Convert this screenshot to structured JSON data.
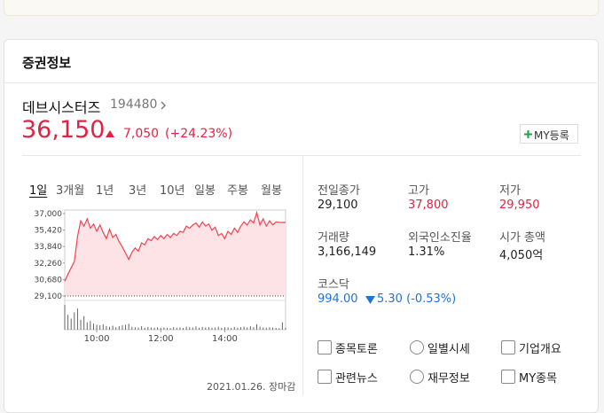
{
  "header": {
    "title": "증권정보"
  },
  "stock": {
    "name": "데브시스터즈",
    "code": "194480",
    "price": "36,150",
    "change": "7,050",
    "change_rate": "(+24.23%)",
    "my_button": "MY등록"
  },
  "tabs": [
    "1일",
    "3개월",
    "1년",
    "3년",
    "10년",
    "일봉",
    "주봉",
    "월봉"
  ],
  "chart": {
    "type": "line",
    "color": "#f04452",
    "ylim": [
      29100,
      37000
    ],
    "yticks": [
      {
        "value": 37000,
        "label": "37,000"
      },
      {
        "value": 35420,
        "label": "35,420"
      },
      {
        "value": 33840,
        "label": "33,840"
      },
      {
        "value": 32260,
        "label": "32,260"
      },
      {
        "value": 30680,
        "label": "30,680"
      },
      {
        "value": 29100,
        "label": "29,100"
      }
    ],
    "xlim": [
      9,
      15.9
    ],
    "xticks": [
      {
        "value": 10,
        "label": "10:00"
      },
      {
        "value": 12,
        "label": "12:00"
      },
      {
        "value": 14,
        "label": "14:00"
      }
    ],
    "x": [
      9.0,
      9.1,
      9.2,
      9.3,
      9.4,
      9.5,
      9.6,
      9.7,
      9.8,
      9.9,
      10.0,
      10.1,
      10.2,
      10.3,
      10.4,
      10.5,
      10.6,
      10.7,
      10.8,
      10.9,
      11.0,
      11.1,
      11.2,
      11.3,
      11.4,
      11.5,
      11.6,
      11.7,
      11.8,
      11.9,
      12.0,
      12.1,
      12.2,
      12.3,
      12.4,
      12.5,
      12.6,
      12.7,
      12.8,
      12.9,
      13.0,
      13.1,
      13.2,
      13.3,
      13.4,
      13.5,
      13.6,
      13.7,
      13.8,
      13.9,
      14.0,
      14.1,
      14.2,
      14.3,
      14.4,
      14.5,
      14.6,
      14.7,
      14.8,
      14.9,
      15.0,
      15.1,
      15.2,
      15.3,
      15.4,
      15.5,
      15.6,
      15.7,
      15.8,
      15.9
    ],
    "values": [
      30500,
      31200,
      31800,
      32400,
      34800,
      36300,
      35800,
      36500,
      35600,
      36000,
      35300,
      35900,
      35200,
      34600,
      35500,
      34700,
      35000,
      34300,
      33800,
      33200,
      32600,
      33300,
      33700,
      33400,
      34200,
      34000,
      34600,
      34400,
      34800,
      34500,
      34900,
      34600,
      35000,
      34700,
      35100,
      34900,
      35300,
      35200,
      35800,
      35600,
      35900,
      36100,
      35700,
      36200,
      35800,
      36000,
      35400,
      35700,
      34900,
      35100,
      34600,
      35300,
      35000,
      35600,
      35200,
      35800,
      36200,
      35900,
      36400,
      36100,
      37100,
      35900,
      36500,
      35800,
      36300,
      35900,
      36200,
      36150,
      36150,
      36150
    ],
    "volume_ylim": [
      0,
      100
    ],
    "volume": [
      100,
      60,
      45,
      70,
      85,
      40,
      55,
      30,
      35,
      25,
      20,
      18,
      22,
      15,
      12,
      16,
      10,
      14,
      18,
      20,
      24,
      12,
      10,
      9,
      14,
      8,
      11,
      9,
      8,
      10,
      7,
      9,
      8,
      6,
      10,
      8,
      9,
      7,
      12,
      10,
      9,
      13,
      8,
      11,
      9,
      10,
      8,
      9,
      12,
      8,
      10,
      9,
      7,
      11,
      8,
      10,
      12,
      9,
      14,
      10,
      22,
      12,
      9,
      8,
      10,
      9,
      7,
      6,
      30,
      8
    ]
  },
  "date": "2021.01.26. 장마감",
  "info": [
    {
      "label": "전일종가",
      "value": "29,100"
    },
    {
      "label": "고가",
      "value": "37,800"
    },
    {
      "label": "저가",
      "value": "29,950"
    },
    {
      "label": "거래량",
      "value": "3,166,149"
    },
    {
      "label": "외국인소진율",
      "value": "1.31%"
    },
    {
      "label": "시가 총액",
      "value": "4,050억"
    }
  ],
  "index": {
    "label": "코스닥",
    "value": "994.00",
    "change": "5.30 (-0.53%)"
  },
  "links": [
    "종목토론",
    "일별시세",
    "기업개요",
    "관련뉴스",
    "재무정보",
    "MY종목"
  ]
}
